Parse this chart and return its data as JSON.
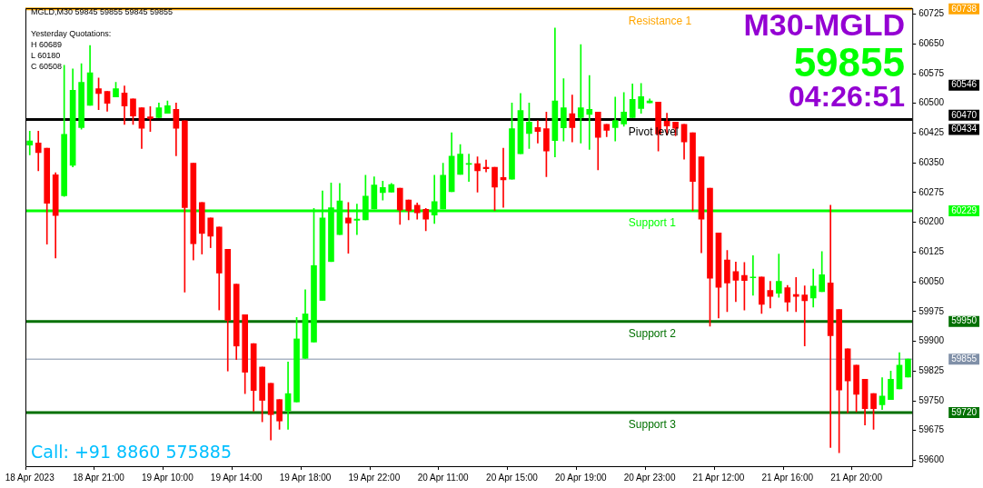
{
  "chart_data": {
    "type": "candlestick",
    "title": "M30-MGLD",
    "categories": [
      "18 Apr 2023",
      null,
      null,
      null,
      null,
      null,
      null,
      null,
      "18 Apr 21:00",
      null,
      null,
      null,
      null,
      null,
      null,
      null,
      "19 Apr 10:00",
      null,
      null,
      null,
      null,
      null,
      null,
      null,
      "19 Apr 14:00",
      null,
      null,
      null,
      null,
      null,
      null,
      null,
      "19 Apr 18:00",
      null,
      null,
      null,
      null,
      null,
      null,
      null,
      "19 Apr 22:00",
      null,
      null,
      null,
      null,
      null,
      null,
      null,
      "20 Apr 11:00",
      null,
      null,
      null,
      null,
      null,
      null,
      null,
      "20 Apr 15:00",
      null,
      null,
      null,
      null,
      null,
      null,
      null,
      "20 Apr 19:00",
      null,
      null,
      null,
      null,
      null,
      null,
      null,
      "20 Apr 23:00",
      null,
      null,
      null,
      null,
      null,
      null,
      null,
      "21 Apr 12:00",
      null,
      null,
      null,
      null,
      null,
      null,
      null,
      "21 Apr 16:00",
      null,
      null,
      null,
      null,
      null,
      null,
      null,
      "21 Apr 20:00",
      null,
      null,
      null,
      null,
      null,
      null
    ],
    "ohlc": [
      [
        60395,
        60430,
        60370,
        60405
      ],
      [
        60400,
        60430,
        60330,
        60376
      ],
      [
        60387,
        60387,
        60145,
        60248
      ],
      [
        60320,
        60325,
        60110,
        60217
      ],
      [
        60267,
        60596,
        60265,
        60422
      ],
      [
        60344,
        60587,
        60340,
        60533
      ],
      [
        60439,
        60600,
        60435,
        60553
      ],
      [
        60495,
        60646,
        60495,
        60577
      ],
      [
        60537,
        60564,
        60484,
        60525
      ],
      [
        60530,
        60530,
        60480,
        60500
      ],
      [
        60516,
        60553,
        60516,
        60537
      ],
      [
        60526,
        60544,
        60447,
        60493
      ],
      [
        60511,
        60511,
        60447,
        60468
      ],
      [
        60489,
        60489,
        60386,
        60437
      ],
      [
        60466,
        60492,
        60429,
        60462
      ],
      [
        60464,
        60501,
        60464,
        60489
      ],
      [
        60475,
        60506,
        60475,
        60494
      ],
      [
        60485,
        60501,
        60368,
        60437
      ],
      [
        60456,
        60456,
        60024,
        60237
      ],
      [
        60349,
        60349,
        60105,
        60146
      ],
      [
        60250,
        60250,
        60120,
        60172
      ],
      [
        60211,
        60211,
        60136,
        60165
      ],
      [
        60188,
        60188,
        59979,
        60072
      ],
      [
        60132,
        60132,
        59825,
        59953
      ],
      [
        60044,
        60044,
        59854,
        59888
      ],
      [
        59967,
        59967,
        59768,
        59822
      ],
      [
        59894,
        59894,
        59724,
        59776
      ],
      [
        59835,
        59835,
        59697,
        59751
      ],
      [
        59794,
        59794,
        59651,
        59715
      ],
      [
        59753,
        59753,
        59678,
        59699
      ],
      [
        59725,
        59848,
        59678,
        59768
      ],
      [
        59747,
        59960,
        59747,
        59906
      ],
      [
        59857,
        60030,
        59857,
        59969
      ],
      [
        59898,
        60235,
        59898,
        60091
      ],
      [
        60003,
        60279,
        60003,
        60211
      ],
      [
        60101,
        60299,
        60101,
        60237
      ],
      [
        60169,
        60298,
        60169,
        60254
      ],
      [
        60211,
        60250,
        60122,
        60198
      ],
      [
        60205,
        60246,
        60169,
        60208
      ],
      [
        60206,
        60319,
        60206,
        60266
      ],
      [
        60234,
        60315,
        60234,
        60294
      ],
      [
        60275,
        60304,
        60256,
        60288
      ],
      [
        60276,
        60298,
        60276,
        60295
      ],
      [
        60286,
        60286,
        60195,
        60231
      ],
      [
        60256,
        60256,
        60206,
        60229
      ],
      [
        60243,
        60249,
        60208,
        60224
      ],
      [
        60233,
        60235,
        60179,
        60208
      ],
      [
        60218,
        60319,
        60197,
        60252
      ],
      [
        60234,
        60349,
        60234,
        60319
      ],
      [
        60277,
        60426,
        60277,
        60367
      ],
      [
        60321,
        60396,
        60321,
        60372
      ],
      [
        60346,
        60372,
        60303,
        60348
      ],
      [
        60348,
        60365,
        60276,
        60330
      ],
      [
        60339,
        60357,
        60327,
        60335
      ],
      [
        60339,
        60339,
        60230,
        60289
      ],
      [
        60313,
        60387,
        60238,
        60307
      ],
      [
        60309,
        60501,
        60309,
        60436
      ],
      [
        60373,
        60525,
        60373,
        60482
      ],
      [
        60424,
        60501,
        60386,
        60453
      ],
      [
        60439,
        60457,
        60400,
        60429
      ],
      [
        60436,
        60478,
        60315,
        60380
      ],
      [
        60406,
        60690,
        60365,
        60506
      ],
      [
        60438,
        60562,
        60405,
        60489
      ],
      [
        60474,
        60521,
        60403,
        60439
      ],
      [
        60464,
        60648,
        60400,
        60489
      ],
      [
        60472,
        60570,
        60384,
        60485
      ],
      [
        60478,
        60478,
        60332,
        60414
      ],
      [
        60447,
        60447,
        60416,
        60432
      ],
      [
        60439,
        60516,
        60405,
        60457
      ],
      [
        60448,
        60527,
        60442,
        60478
      ],
      [
        60464,
        60549,
        60464,
        60510
      ],
      [
        60487,
        60550,
        60475,
        60517
      ],
      [
        60501,
        60511,
        60501,
        60506
      ],
      [
        60503,
        60503,
        60380,
        60423
      ],
      [
        60455,
        60475,
        60420,
        60443
      ],
      [
        60453,
        60453,
        60418,
        60437
      ],
      [
        60447,
        60447,
        60359,
        60403
      ],
      [
        60426,
        60426,
        60230,
        60303
      ],
      [
        60365,
        60365,
        60123,
        60208
      ],
      [
        60286,
        60286,
        59938,
        60059
      ],
      [
        60173,
        60173,
        59959,
        60036
      ],
      [
        60105,
        60129,
        59975,
        60047
      ],
      [
        60076,
        60100,
        60000,
        60054
      ],
      [
        60066,
        60099,
        59979,
        60053
      ],
      [
        60060,
        60116,
        60016,
        60061
      ],
      [
        60062,
        60062,
        59970,
        59993
      ],
      [
        60028,
        60051,
        59984,
        60013
      ],
      [
        60021,
        60120,
        60011,
        60051
      ],
      [
        60035,
        60041,
        59976,
        59999
      ],
      [
        60018,
        60061,
        59975,
        60013
      ],
      [
        60017,
        60040,
        59888,
        60002
      ],
      [
        60009,
        60082,
        59986,
        60039
      ],
      [
        60025,
        60126,
        60025,
        60068
      ],
      [
        60047,
        60243,
        59632,
        59914
      ],
      [
        59980,
        59980,
        59619,
        59777
      ],
      [
        59881,
        59881,
        59720,
        59800
      ],
      [
        59840,
        59840,
        59722,
        59766
      ],
      [
        59804,
        59804,
        59689,
        59730
      ],
      [
        59768,
        59768,
        59678,
        59730
      ],
      [
        59740,
        59808,
        59728,
        59762
      ],
      [
        59753,
        59825,
        59753,
        59804
      ],
      [
        59780,
        59871,
        59780,
        59840
      ],
      [
        59810,
        59855,
        59810,
        59855
      ]
    ],
    "colors": [
      "#00ff00",
      "#ff0000",
      "#ff0000",
      "#ff0000",
      "#00ff00",
      "#00ff00",
      "#00ff00",
      "#00ff00",
      "#ff0000",
      "#ff0000",
      "#00ff00",
      "#ff0000",
      "#ff0000",
      "#ff0000",
      "#ff0000",
      "#00ff00",
      "#00ff00",
      "#ff0000",
      "#ff0000",
      "#ff0000",
      "#ff0000",
      "#ff0000",
      "#ff0000",
      "#ff0000",
      "#ff0000",
      "#ff0000",
      "#ff0000",
      "#ff0000",
      "#ff0000",
      "#ff0000",
      "#00ff00",
      "#00ff00",
      "#00ff00",
      "#00ff00",
      "#00ff00",
      "#00ff00",
      "#00ff00",
      "#ff0000",
      "#00ff00",
      "#00ff00",
      "#00ff00",
      "#00ff00",
      "#00ff00",
      "#ff0000",
      "#ff0000",
      "#ff0000",
      "#ff0000",
      "#00ff00",
      "#00ff00",
      "#00ff00",
      "#00ff00",
      "#00ff00",
      "#ff0000",
      "#ff0000",
      "#ff0000",
      "#ff0000",
      "#00ff00",
      "#00ff00",
      "#00ff00",
      "#ff0000",
      "#ff0000",
      "#00ff00",
      "#00ff00",
      "#ff0000",
      "#00ff00",
      "#00ff00",
      "#ff0000",
      "#ff0000",
      "#00ff00",
      "#00ff00",
      "#00ff00",
      "#00ff00",
      "#00ff00",
      "#ff0000",
      "#ff0000",
      "#ff0000",
      "#ff0000",
      "#ff0000",
      "#ff0000",
      "#ff0000",
      "#ff0000",
      "#ff0000",
      "#ff0000",
      "#ff0000",
      "#00ff00",
      "#ff0000",
      "#ff0000",
      "#00ff00",
      "#ff0000",
      "#ff0000",
      "#ff0000",
      "#00ff00",
      "#00ff00",
      "#ff0000",
      "#ff0000",
      "#ff0000",
      "#ff0000",
      "#ff0000",
      "#ff0000",
      "#00ff00",
      "#00ff00",
      "#00ff00",
      "#00ff00"
    ],
    "ylim": [
      59585,
      60740
    ],
    "yticks": [
      59600,
      59675,
      59750,
      59825,
      59900,
      59975,
      60050,
      60125,
      60200,
      60275,
      60350,
      60425,
      60500,
      60575,
      60650,
      60725
    ],
    "grid": false,
    "legend": false,
    "ref_lines": [
      {
        "axis": "y",
        "value": 60738,
        "label": "Resistance 1",
        "color": "#ffa500"
      },
      {
        "axis": "y",
        "value": 60459,
        "label": "Pivot level",
        "color": "#000000"
      },
      {
        "axis": "y",
        "value": 60229,
        "label": "Support 1",
        "color": "#00ff00"
      },
      {
        "axis": "y",
        "value": 59950,
        "label": "Support 2",
        "color": "#007000"
      },
      {
        "axis": "y",
        "value": 59720,
        "label": "Support 3",
        "color": "#007000"
      },
      {
        "axis": "y",
        "value": 59855,
        "color": "#8090a8"
      }
    ],
    "annotations": [
      "MGLD,M30  59845 59855 59845 59855",
      "Yesterday Quotations:",
      "H 60689",
      "L 60180",
      "C 60508",
      "59855",
      "04:26:51",
      "Call: +91 8860 575885",
      "60738",
      "60546",
      "60470",
      "60434",
      "60229",
      "59950",
      "59855",
      "59720"
    ]
  }
}
